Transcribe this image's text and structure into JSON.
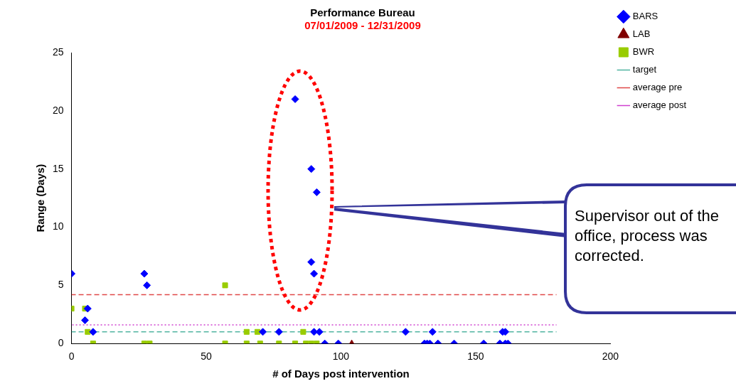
{
  "chart_data": {
    "type": "scatter",
    "title": "Performance Bureau",
    "subtitle": "07/01/2009 - 12/31/2009",
    "xlabel": "# of Days post intervention",
    "ylabel": "Range (Days)",
    "xlim": [
      0,
      200
    ],
    "xticks": [
      0,
      50,
      100,
      150,
      200
    ],
    "ylim": [
      0,
      25
    ],
    "yticks": [
      0,
      5,
      10,
      15,
      20,
      25
    ],
    "grid": false,
    "legend": "top right",
    "annotations": [
      "Supervisor out of the office, process was corrected."
    ],
    "series": [
      {
        "name": "BARS",
        "color": "#0000ff",
        "marker": "diamond",
        "x": [
          0,
          27,
          28,
          6,
          5,
          8,
          83,
          89,
          91,
          89,
          90,
          71,
          77,
          90,
          92,
          124,
          94,
          99,
          134,
          160,
          161,
          131,
          132,
          133,
          136,
          142,
          153,
          159,
          161,
          162
        ],
        "values": [
          6,
          6,
          5,
          3,
          2,
          1,
          21,
          15,
          13,
          7,
          6,
          1,
          1,
          1,
          1,
          1,
          0,
          0,
          1,
          1,
          1,
          0,
          0,
          0,
          0,
          0,
          0,
          0,
          0,
          0
        ]
      },
      {
        "name": "LAB",
        "color": "#800000",
        "marker": "triangle",
        "x": [
          104
        ],
        "values": [
          0
        ]
      },
      {
        "name": "BWR",
        "color": "#99cc00",
        "marker": "square",
        "x": [
          0,
          5,
          6,
          8,
          27,
          29,
          57,
          57,
          65,
          69,
          86,
          65,
          70,
          77,
          83,
          87,
          89,
          91
        ],
        "values": [
          3,
          3,
          1,
          0,
          0,
          0,
          5,
          0,
          1,
          1,
          1,
          0,
          0,
          0,
          0,
          0,
          0,
          0
        ]
      },
      {
        "name": "target",
        "type": "line",
        "color": "#50b4a0",
        "marker": "none",
        "line_style": "dashed",
        "x": [
          0,
          180
        ],
        "values": [
          1,
          1
        ]
      },
      {
        "name": "average pre",
        "type": "line",
        "color": "#e04848",
        "marker": "none",
        "line_style": "dashed",
        "x": [
          0,
          180
        ],
        "values": [
          4.2,
          4.2
        ]
      },
      {
        "name": "average post",
        "type": "line",
        "color": "#d040d0",
        "marker": "none",
        "line_style": "dotted",
        "x": [
          0,
          180
        ],
        "values": [
          1.6,
          1.6
        ]
      }
    ]
  }
}
